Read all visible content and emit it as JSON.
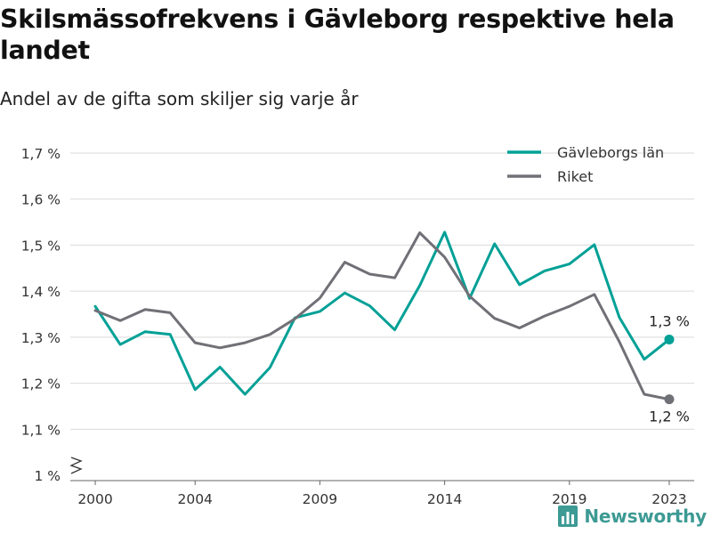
{
  "colors": {
    "gavleborg": "#00a096",
    "riket": "#707077",
    "grid": "#d9d9d9",
    "axis": "#666666",
    "brand": "#3d9a94"
  },
  "brand": {
    "name": "Newsworthy",
    "icon": "bar-chart-logo-icon"
  },
  "chart_data": {
    "type": "line",
    "title": "Skilsmässofrekvens i Gävleborg respektive hela landet",
    "subtitle": "Andel av de gifta som skiljer sig varje år",
    "x": [
      2000,
      2001,
      2002,
      2003,
      2004,
      2005,
      2006,
      2007,
      2008,
      2009,
      2010,
      2011,
      2012,
      2013,
      2014,
      2015,
      2016,
      2017,
      2018,
      2019,
      2020,
      2021,
      2022,
      2023
    ],
    "x_ticks": [
      2000,
      2004,
      2009,
      2014,
      2019,
      2023
    ],
    "xlim": [
      1999,
      2024
    ],
    "ylim": [
      1.0,
      1.72
    ],
    "y_ticks": [
      {
        "value": 1.0,
        "label": "1 %"
      },
      {
        "value": 1.1,
        "label": "1,1 %"
      },
      {
        "value": 1.2,
        "label": "1,2 %"
      },
      {
        "value": 1.3,
        "label": "1,3 %"
      },
      {
        "value": 1.4,
        "label": "1,4 %"
      },
      {
        "value": 1.5,
        "label": "1,5 %"
      },
      {
        "value": 1.6,
        "label": "1,6 %"
      },
      {
        "value": 1.7,
        "label": "1,7 %"
      }
    ],
    "y_axis_break": true,
    "grid": true,
    "legend_position": "top-right",
    "series": [
      {
        "name": "Gävleborgs län",
        "color_key": "gavleborg",
        "values": [
          1.367,
          1.284,
          1.312,
          1.306,
          1.186,
          1.235,
          1.176,
          1.234,
          1.342,
          1.356,
          1.396,
          1.368,
          1.316,
          1.412,
          1.528,
          1.384,
          1.503,
          1.414,
          1.444,
          1.459,
          1.501,
          1.343,
          1.252,
          1.295
        ],
        "end_label": "1,3 %"
      },
      {
        "name": "Riket",
        "color_key": "riket",
        "values": [
          1.358,
          1.336,
          1.36,
          1.353,
          1.288,
          1.277,
          1.288,
          1.306,
          1.34,
          1.385,
          1.463,
          1.437,
          1.429,
          1.527,
          1.474,
          1.389,
          1.341,
          1.32,
          1.346,
          1.367,
          1.393,
          1.29,
          1.176,
          1.165
        ],
        "end_label": "1,2 %"
      }
    ]
  }
}
